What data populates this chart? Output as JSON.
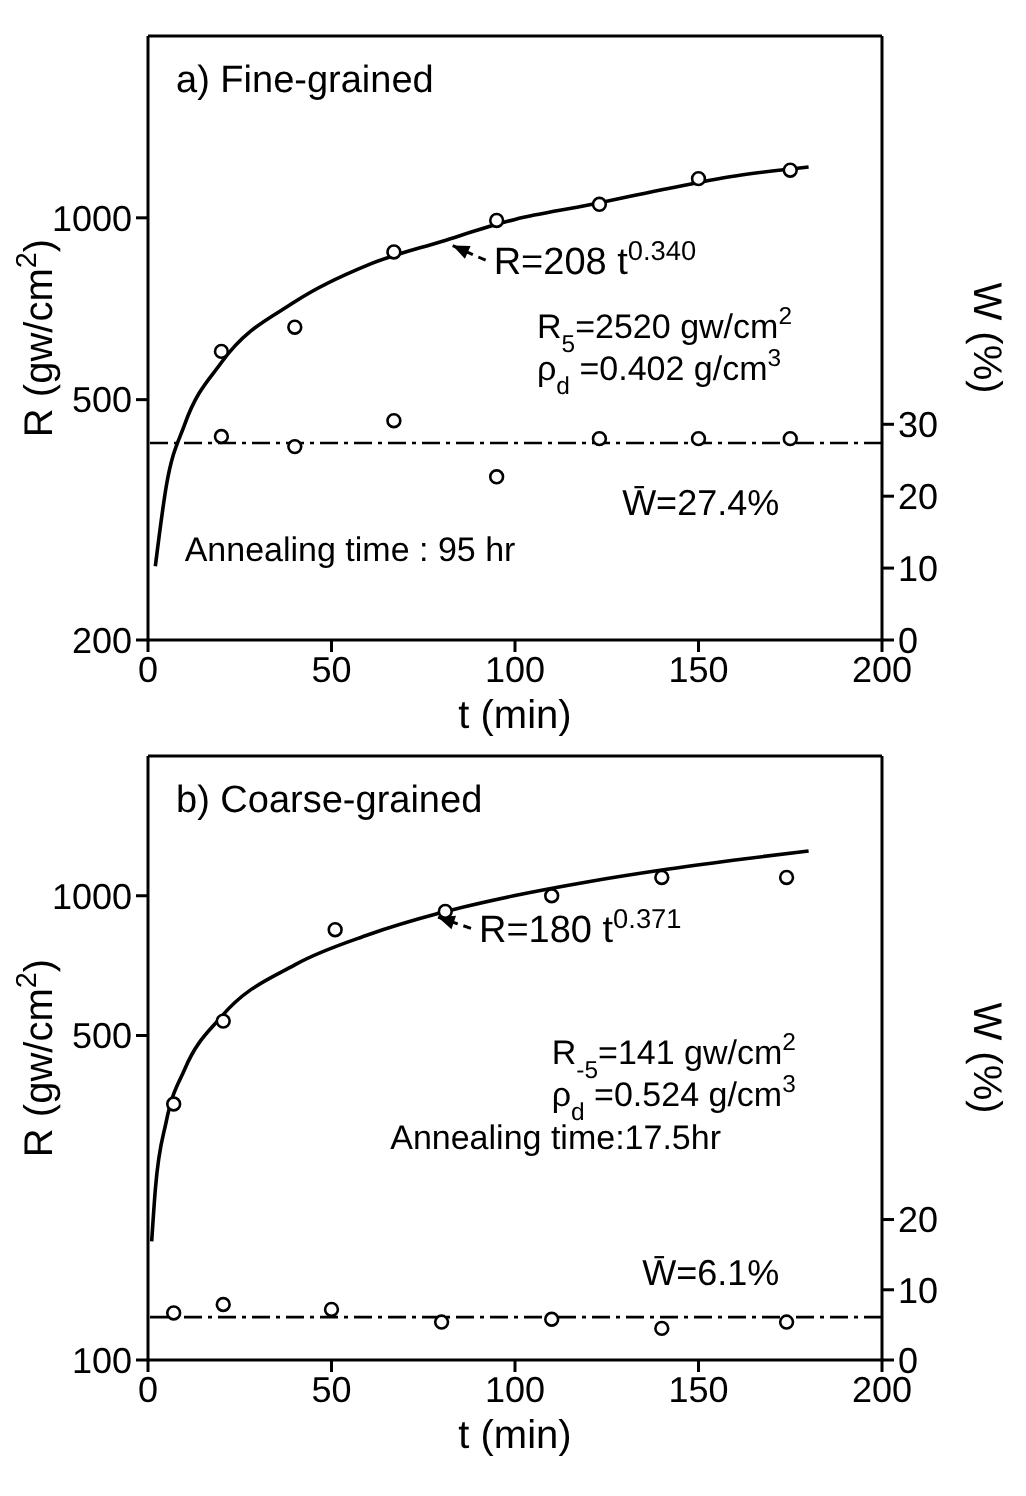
{
  "chart_data": [
    {
      "type": "line",
      "title": "a) Fine-grained",
      "xlabel": "t (min)",
      "ylabel": "R (gw/cm$^{2}$)",
      "y2label": "W (%)",
      "log": "y",
      "xlim": [
        0,
        200
      ],
      "xticks": [
        0,
        50,
        100,
        150,
        200
      ],
      "ylim": [
        200,
        2000
      ],
      "yticks": [
        200,
        500,
        1000
      ],
      "y2lim": [
        0,
        84
      ],
      "y2ticks": [
        0,
        10,
        20,
        30
      ],
      "series": [
        {
          "color": "#000000",
          "marker": "none",
          "line_style": "solid",
          "x": [
            2,
            5,
            10,
            20,
            40,
            60,
            80,
            100,
            120,
            140,
            160,
            180
          ],
          "values": [
            265,
            360,
            455,
            576,
            726,
            836,
            914,
            994,
            1050,
            1113,
            1173,
            1214
          ]
        },
        {
          "type": "scatter",
          "color": "#000000",
          "marker": "circle",
          "x": [
            20,
            40,
            67,
            95,
            123,
            150,
            175
          ],
          "values": [
            601,
            659,
            878,
            990,
            1053,
            1161,
            1199
          ]
        },
        {
          "type": "scatter",
          "axis": "y2",
          "color": "#000000",
          "marker": "circle",
          "x": [
            20,
            40,
            67,
            95,
            123,
            150,
            175
          ],
          "values": [
            28.3,
            26.9,
            30.5,
            22.7,
            28.0,
            28.0,
            28.0
          ]
        }
      ],
      "ref_lines": [
        {
          "axis": "y2",
          "value": 27.4,
          "label": "W̄=27.4%",
          "line_style": "dashed",
          "color": "#000000"
        }
      ],
      "annotations": [
        {
          "text": "R=208 t$^{0.340}$",
          "x": 82,
          "y": 905
        },
        "R$_{5}$=2520 gw/cm$^{2}$",
        "ρ$_{d}$ =0.402 g/cm$^{3}$",
        "Annealing time : 95 hr"
      ]
    },
    {
      "type": "line",
      "title": "b) Coarse-grained",
      "xlabel": "t (min)",
      "ylabel": "R (gw/cm$^{2}$)",
      "y2label": "W (%)",
      "log": "y",
      "xlim": [
        0,
        200
      ],
      "xticks": [
        0,
        50,
        100,
        150,
        200
      ],
      "ylim": [
        100,
        2000
      ],
      "yticks": [
        100,
        500,
        1000
      ],
      "y2lim": [
        0,
        86
      ],
      "y2ticks": [
        0,
        10,
        20
      ],
      "series": [
        {
          "color": "#000000",
          "marker": "none",
          "line_style": "solid",
          "x": [
            1,
            2,
            5,
            10,
            20,
            40,
            60,
            80,
            100,
            120,
            140,
            160,
            180
          ],
          "values": [
            180,
            233,
            327,
            423,
            549,
            710,
            824,
            920,
            1001,
            1072,
            1136,
            1194,
            1249
          ]
        },
        {
          "type": "scatter",
          "color": "#000000",
          "marker": "circle",
          "x": [
            7,
            20.5,
            51,
            81,
            110,
            140,
            174
          ],
          "values": [
            356,
            537,
            845,
            925,
            1000,
            1095,
            1095
          ]
        },
        {
          "type": "scatter",
          "axis": "y2",
          "color": "#000000",
          "marker": "circle",
          "x": [
            7,
            20.5,
            50,
            80,
            110,
            140,
            174
          ],
          "values": [
            6.7,
            7.9,
            7.2,
            5.4,
            5.8,
            4.5,
            5.4
          ]
        }
      ],
      "ref_lines": [
        {
          "axis": "y2",
          "value": 6.1,
          "label": "W̄=6.1%",
          "line_style": "dashed",
          "color": "#000000"
        }
      ],
      "annotations": [
        {
          "text": "R=180 t$^{0.371}$",
          "x": 78,
          "y": 905
        },
        "R$_{-5}$=141 gw/cm$^{2}$",
        "ρ$_{d}$ =0.524 g/cm$^{3}$",
        "Annealing time:17.5hr"
      ]
    }
  ]
}
